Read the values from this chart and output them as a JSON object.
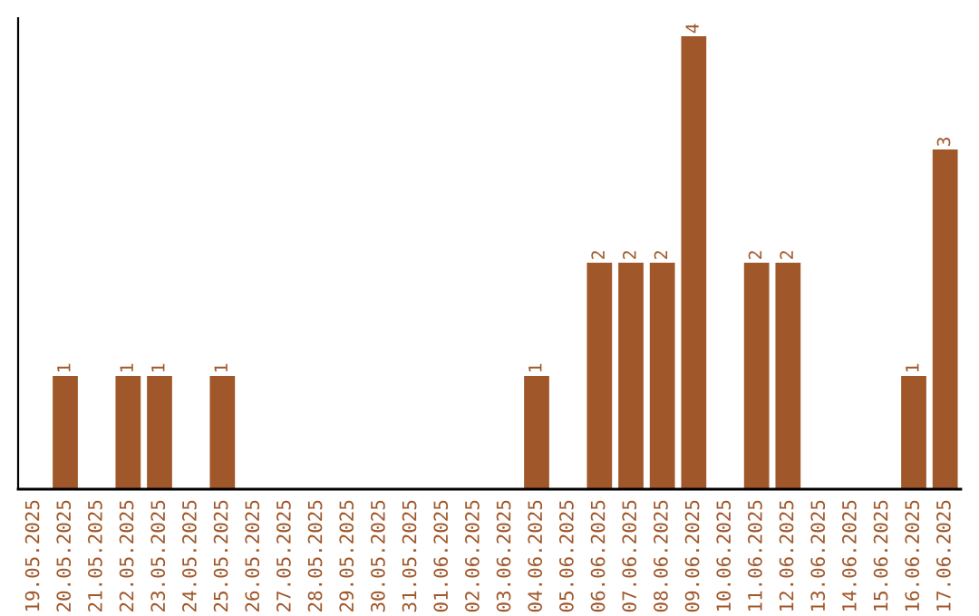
{
  "chart_data": {
    "type": "bar",
    "categories": [
      "19.05.2025",
      "20.05.2025",
      "21.05.2025",
      "22.05.2025",
      "23.05.2025",
      "24.05.2025",
      "25.05.2025",
      "26.05.2025",
      "27.05.2025",
      "28.05.2025",
      "29.05.2025",
      "30.05.2025",
      "31.05.2025",
      "01.06.2025",
      "02.06.2025",
      "03.06.2025",
      "04.06.2025",
      "05.06.2025",
      "06.06.2025",
      "07.06.2025",
      "08.06.2025",
      "09.06.2025",
      "10.06.2025",
      "11.06.2025",
      "12.06.2025",
      "13.06.2025",
      "14.06.2025",
      "15.06.2025",
      "16.06.2025",
      "17.06.2025"
    ],
    "values": [
      0,
      1,
      0,
      1,
      1,
      0,
      1,
      0,
      0,
      0,
      0,
      0,
      0,
      0,
      0,
      0,
      1,
      0,
      2,
      2,
      2,
      4,
      0,
      2,
      2,
      0,
      0,
      0,
      1,
      3
    ],
    "value_labels": [
      null,
      "1",
      null,
      "1",
      "1",
      null,
      "1",
      null,
      null,
      null,
      null,
      null,
      null,
      null,
      null,
      null,
      "1",
      null,
      "2",
      "2",
      "2",
      "4",
      null,
      "2",
      "2",
      null,
      null,
      null,
      "1",
      "3"
    ],
    "color": "#a0572a",
    "grid": false,
    "tick_labels": "x"
  }
}
